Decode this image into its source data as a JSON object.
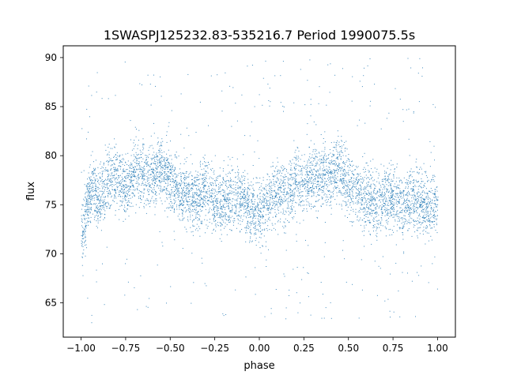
{
  "chart_data": {
    "type": "scatter",
    "title": "1SWASPJ125232.83-535216.7 Period 1990075.5s",
    "xlabel": "phase",
    "ylabel": "flux",
    "xlim": [
      -1.1,
      1.1
    ],
    "ylim": [
      61.5,
      91.2
    ],
    "x_ticks": [
      -1.0,
      -0.75,
      -0.5,
      -0.25,
      0.0,
      0.25,
      0.5,
      0.75,
      1.0
    ],
    "x_tick_labels": [
      "−1.00",
      "−0.75",
      "−0.50",
      "−0.25",
      "0.00",
      "0.25",
      "0.50",
      "0.75",
      "1.00"
    ],
    "y_ticks": [
      65,
      70,
      75,
      80,
      85,
      90
    ],
    "y_tick_labels": [
      "65",
      "70",
      "75",
      "80",
      "85",
      "90"
    ],
    "grid": false,
    "legend": "none",
    "marker_color": "#1f77b4",
    "series": [
      {
        "phase_profile": [
          [
            -1.0,
            72.0
          ],
          [
            -0.97,
            74.5
          ],
          [
            -0.94,
            77.0
          ],
          [
            -0.9,
            75.5
          ],
          [
            -0.85,
            77.5
          ],
          [
            -0.8,
            78.0
          ],
          [
            -0.75,
            76.5
          ],
          [
            -0.7,
            78.5
          ],
          [
            -0.65,
            78.0
          ],
          [
            -0.6,
            78.0
          ],
          [
            -0.55,
            79.0
          ],
          [
            -0.5,
            77.5
          ],
          [
            -0.45,
            76.5
          ],
          [
            -0.4,
            76.0
          ],
          [
            -0.35,
            75.5
          ],
          [
            -0.3,
            76.5
          ],
          [
            -0.25,
            75.5
          ],
          [
            -0.2,
            75.0
          ],
          [
            -0.15,
            76.0
          ],
          [
            -0.1,
            75.5
          ],
          [
            -0.05,
            74.5
          ],
          [
            0.0,
            74.0
          ],
          [
            0.05,
            75.5
          ],
          [
            0.1,
            76.5
          ],
          [
            0.15,
            76.0
          ],
          [
            0.2,
            77.5
          ],
          [
            0.25,
            77.0
          ],
          [
            0.3,
            78.0
          ],
          [
            0.35,
            78.0
          ],
          [
            0.4,
            78.0
          ],
          [
            0.45,
            79.0
          ],
          [
            0.5,
            77.0
          ],
          [
            0.55,
            76.5
          ],
          [
            0.6,
            75.5
          ],
          [
            0.65,
            75.0
          ],
          [
            0.7,
            76.0
          ],
          [
            0.75,
            76.0
          ],
          [
            0.8,
            75.0
          ],
          [
            0.85,
            75.5
          ],
          [
            0.9,
            75.5
          ],
          [
            0.95,
            74.5
          ],
          [
            1.0,
            75.5
          ]
        ],
        "scatter_sd": 1.6,
        "y_range": [
          63,
          90
        ]
      }
    ]
  }
}
